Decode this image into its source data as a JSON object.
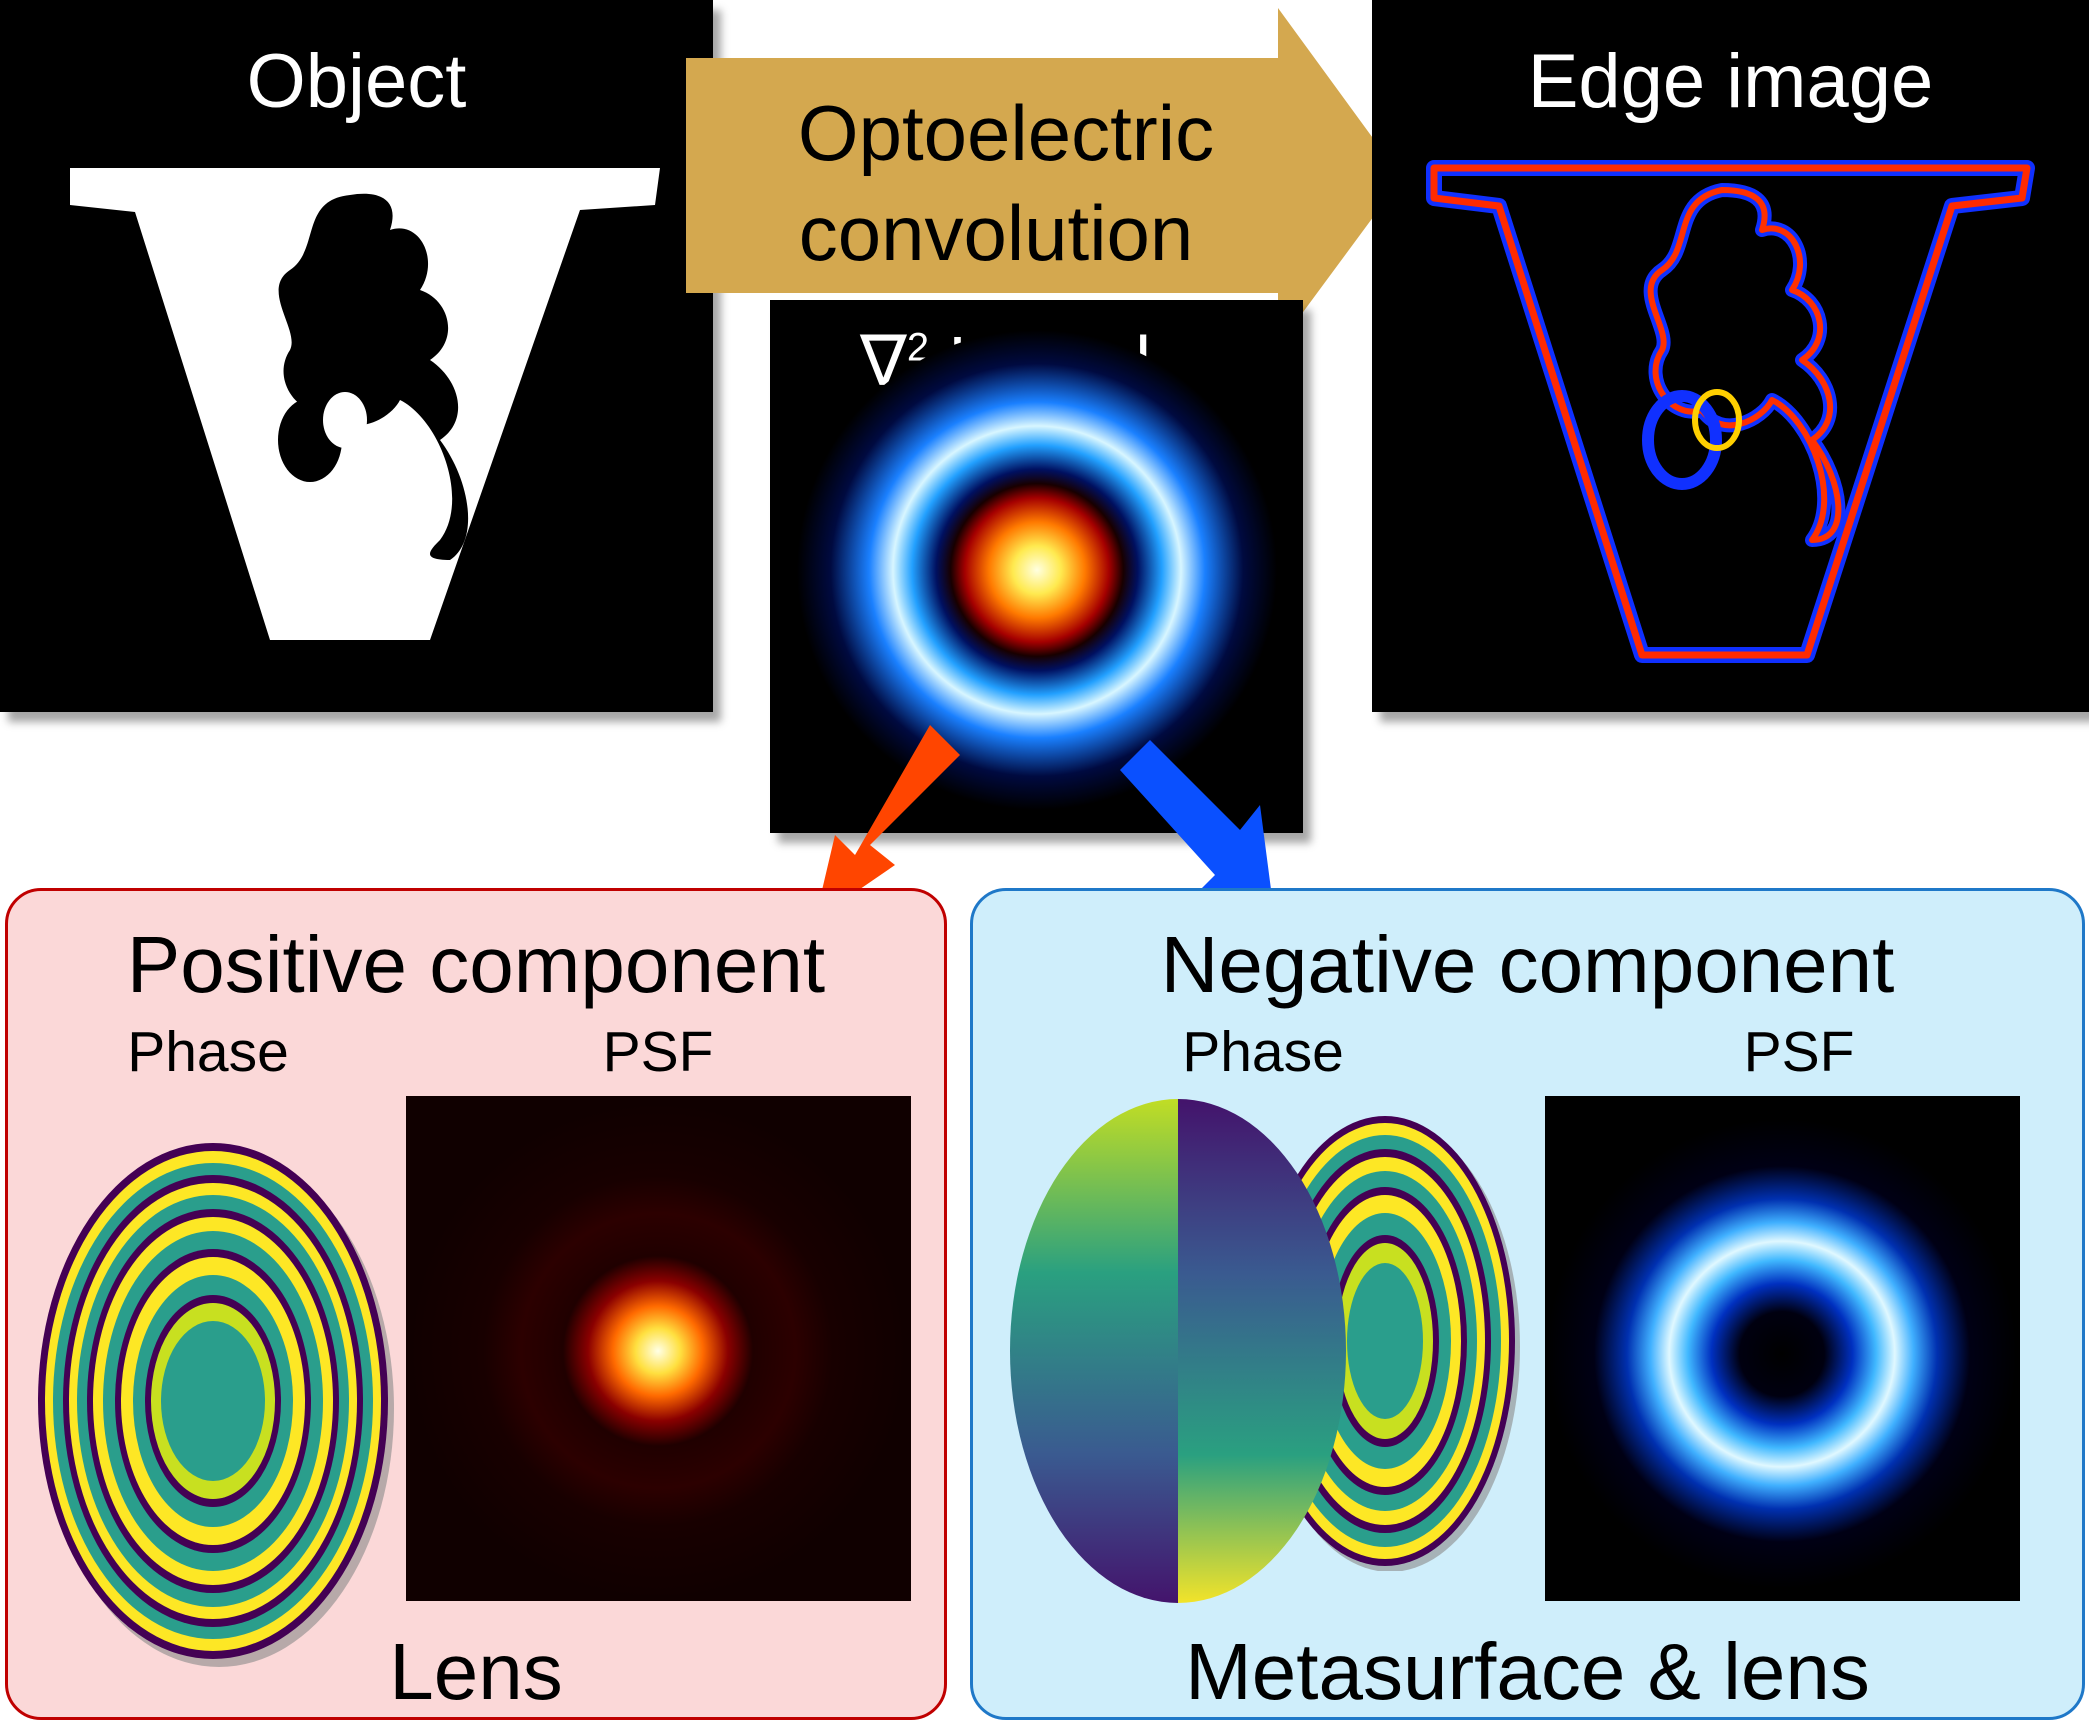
{
  "object_panel": {
    "title": "Object"
  },
  "process_arrow": {
    "line1": "Optoelectric",
    "line2": "convolution",
    "color": "#d4a84f"
  },
  "kernel_panel": {
    "title_symbol": "∇",
    "title_sup": "2",
    "title_text": "Kernel"
  },
  "edge_panel": {
    "title": "Edge image"
  },
  "positive_box": {
    "title": "Positive component",
    "phase_label": "Phase",
    "psf_label": "PSF",
    "footer": "Lens",
    "bg": "#fbd8d8",
    "border": "#c00000",
    "arrow_color": "#ff4500"
  },
  "negative_box": {
    "title": "Negative component",
    "phase_label": "Phase",
    "psf_label": "PSF",
    "footer": "Metasurface & lens",
    "bg": "#cfeefb",
    "border": "#1f78c8",
    "arrow_color": "#0a50ff"
  }
}
